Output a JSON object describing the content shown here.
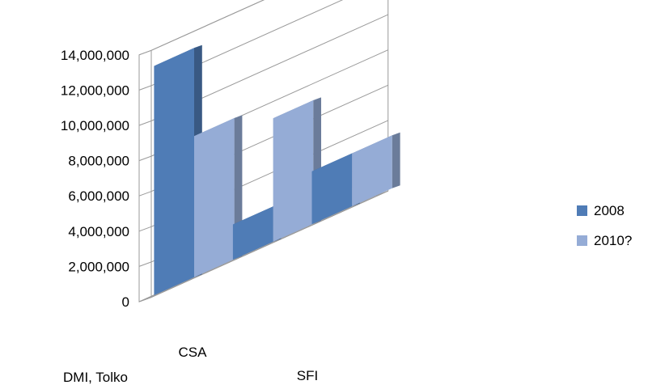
{
  "chart_data": {
    "type": "bar",
    "categories": [
      "CSA",
      "SFI",
      "DMI, Tolko"
    ],
    "series": [
      {
        "name": "2008",
        "values": [
          13000000,
          2000000,
          3000000
        ],
        "color": "#4F7CB6"
      },
      {
        "name": "2010?",
        "values": [
          8000000,
          7000000,
          3000000
        ],
        "color": "#95ACD6"
      }
    ],
    "ylim": [
      0,
      14000000
    ],
    "yticks": [
      "0",
      "2,000,000",
      "4,000,000",
      "6,000,000",
      "8,000,000",
      "10,000,000",
      "12,000,000",
      "14,000,000"
    ],
    "grid": true,
    "legend_position": "right",
    "style": "3d-clustered-column"
  }
}
